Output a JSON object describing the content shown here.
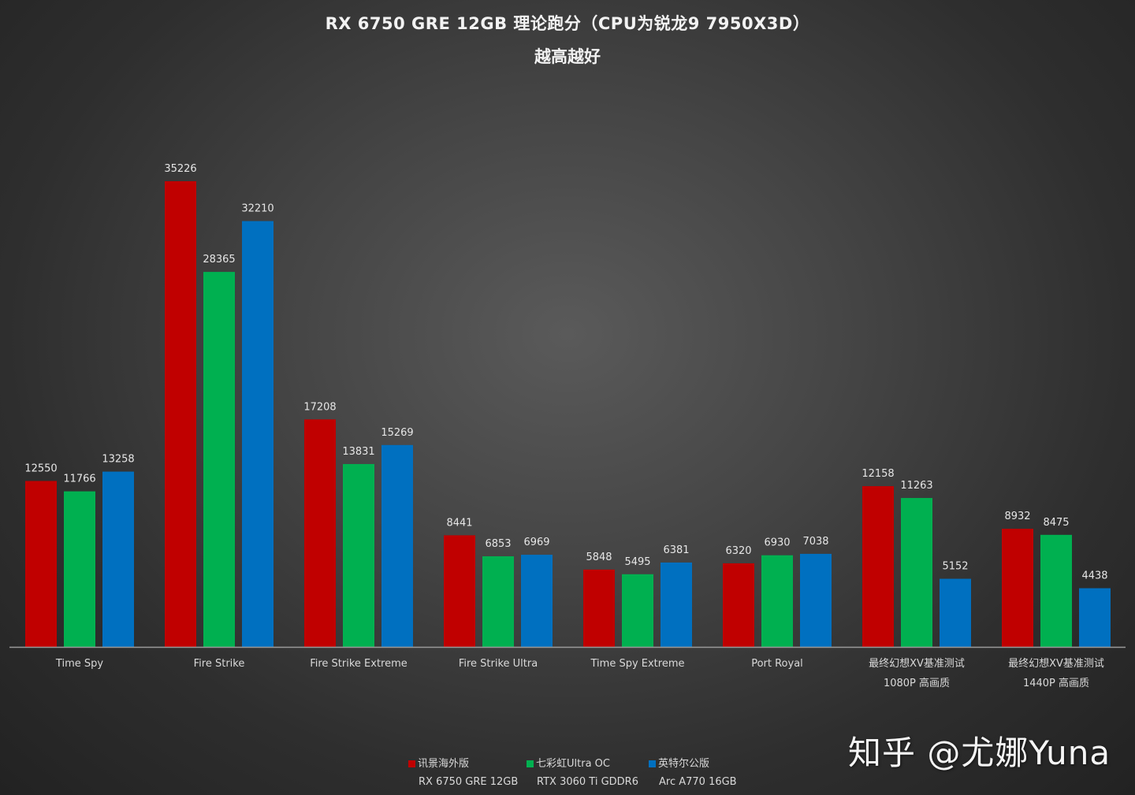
{
  "chart_data": {
    "type": "bar",
    "title": "RX 6750 GRE 12GB 理论跑分（CPU为锐龙9 7950X3D）",
    "subtitle": "越高越好",
    "categories": [
      [
        "Time Spy"
      ],
      [
        "Fire Strike"
      ],
      [
        "Fire Strike Extreme"
      ],
      [
        "Fire Strike Ultra"
      ],
      [
        "Time Spy Extreme"
      ],
      [
        "Port Royal"
      ],
      [
        "最终幻想XV基准测试",
        "1080P 高画质"
      ],
      [
        "最终幻想XV基准测试",
        "1440P 高画质"
      ]
    ],
    "series": [
      {
        "name": "讯景海外版",
        "name2": "RX 6750 GRE 12GB",
        "color": "#c00000",
        "values": [
          12550,
          35226,
          17208,
          8441,
          5848,
          6320,
          12158,
          8932
        ]
      },
      {
        "name": "七彩虹Ultra OC",
        "name2": "RTX 3060 Ti GDDR6",
        "color": "#00b050",
        "values": [
          11766,
          28365,
          13831,
          6853,
          5495,
          6930,
          11263,
          8475
        ]
      },
      {
        "name": "英特尔公版",
        "name2": "Arc A770 16GB",
        "color": "#0070c0",
        "values": [
          13258,
          32210,
          15269,
          6969,
          6381,
          7038,
          5152,
          4438
        ]
      }
    ],
    "ylim": [
      0,
      36000
    ],
    "legend": "bottom-center",
    "grid": false,
    "data_labels": true
  },
  "watermark": "知乎 @尤娜Yuna"
}
